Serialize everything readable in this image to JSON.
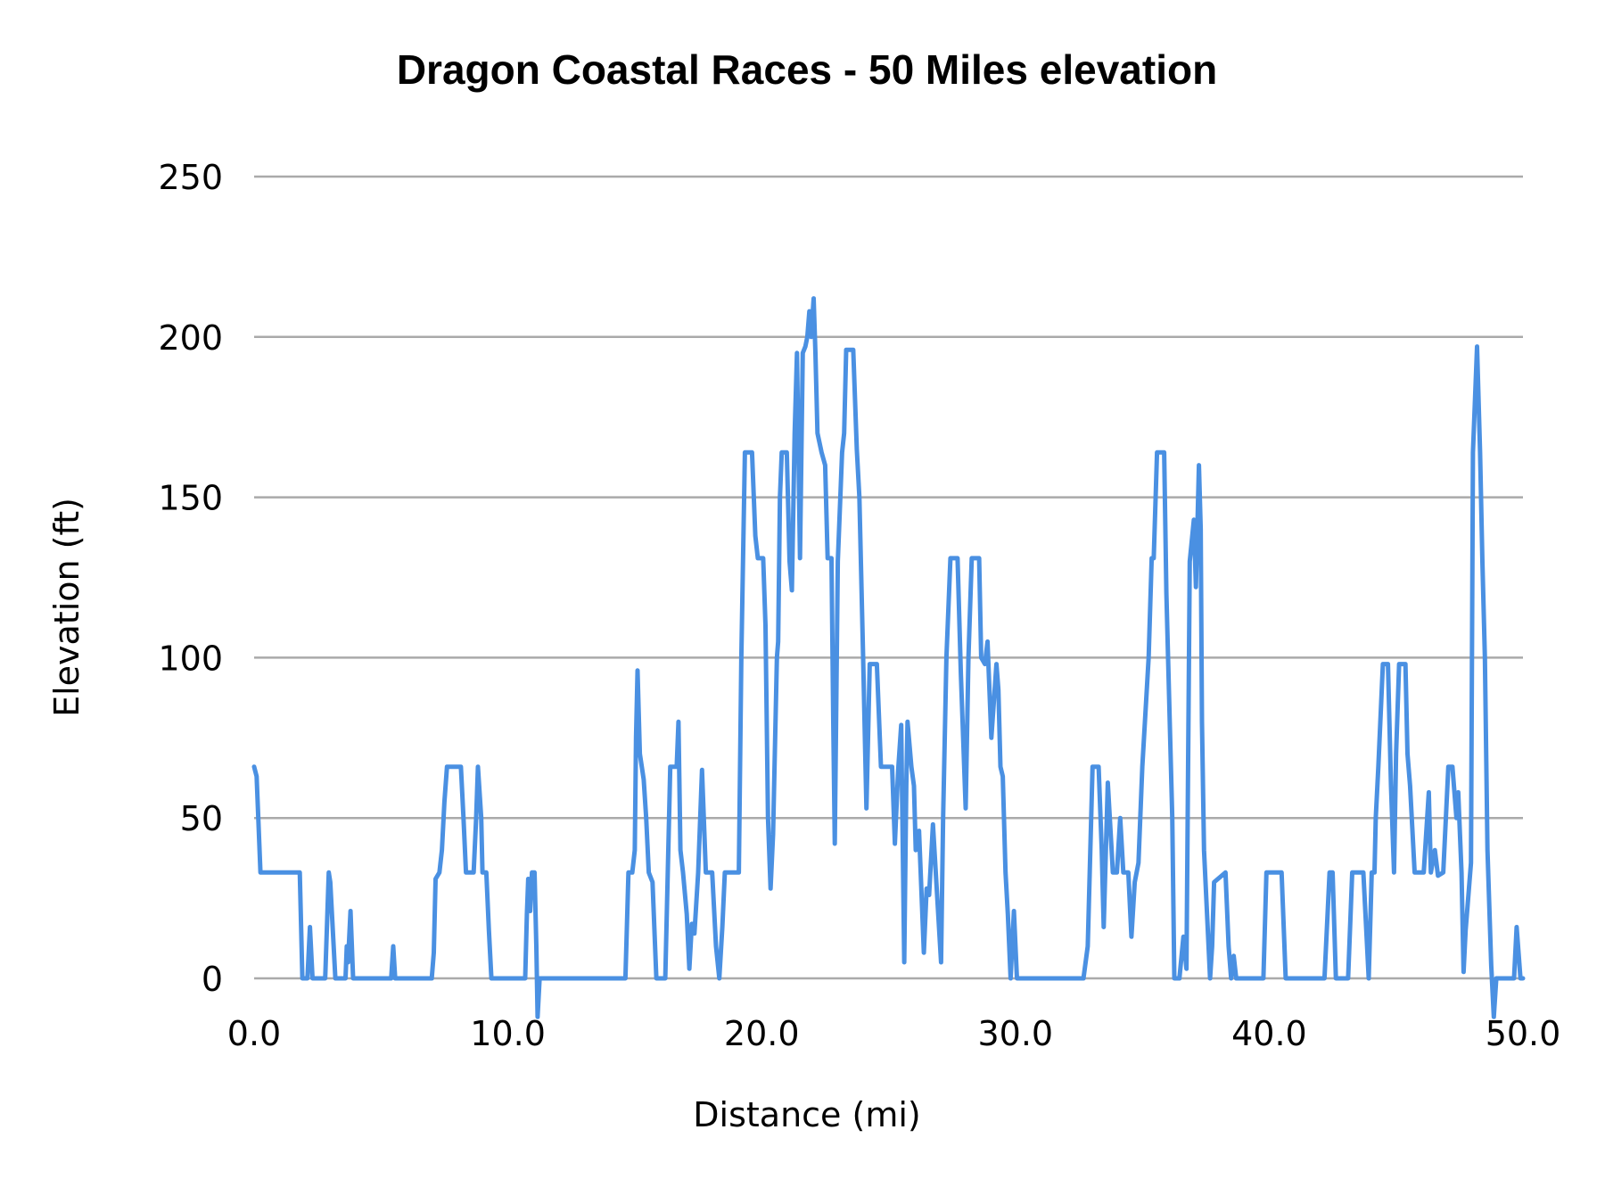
{
  "chart_data": {
    "type": "line",
    "title": "Dragon Coastal Races - 50 Miles elevation",
    "xlabel": "Distance (mi)",
    "ylabel": "Elevation (ft)",
    "xlim": [
      0,
      50
    ],
    "ylim": [
      0,
      250
    ],
    "x_tick_labels": [
      "0.0",
      "10.0",
      "20.0",
      "30.0",
      "40.0",
      "50.0"
    ],
    "x_ticks": [
      0,
      10,
      20,
      30,
      40,
      50
    ],
    "y_tick_labels": [
      "0",
      "50",
      "100",
      "150",
      "200",
      "250"
    ],
    "y_ticks": [
      0,
      50,
      100,
      150,
      200,
      250
    ],
    "grid": "horizontal",
    "legend": "none",
    "line_color": "#4a90e2",
    "grid_color": "#aaaaaa",
    "series": [
      {
        "points": [
          [
            0,
            66
          ],
          [
            0.1,
            63
          ],
          [
            0.25,
            33
          ],
          [
            1.8,
            33
          ],
          [
            1.9,
            0
          ],
          [
            2.1,
            0
          ],
          [
            2.2,
            16
          ],
          [
            2.3,
            0
          ],
          [
            2.8,
            0
          ],
          [
            2.94,
            33
          ],
          [
            3.0,
            30
          ],
          [
            3.2,
            0
          ],
          [
            3.6,
            0
          ],
          [
            3.65,
            10
          ],
          [
            3.7,
            5
          ],
          [
            3.8,
            21
          ],
          [
            3.9,
            0
          ],
          [
            5.4,
            0
          ],
          [
            5.48,
            10
          ],
          [
            5.56,
            0
          ],
          [
            7.0,
            0
          ],
          [
            7.08,
            8
          ],
          [
            7.15,
            31
          ],
          [
            7.3,
            33
          ],
          [
            7.4,
            40
          ],
          [
            7.5,
            55
          ],
          [
            7.6,
            66
          ],
          [
            8.15,
            66
          ],
          [
            8.25,
            50
          ],
          [
            8.35,
            33
          ],
          [
            8.65,
            33
          ],
          [
            8.75,
            50
          ],
          [
            8.82,
            66
          ],
          [
            8.95,
            50
          ],
          [
            9.0,
            33
          ],
          [
            9.15,
            33
          ],
          [
            9.25,
            15
          ],
          [
            9.35,
            0
          ],
          [
            10.68,
            0
          ],
          [
            10.75,
            20
          ],
          [
            10.8,
            31
          ],
          [
            10.88,
            21
          ],
          [
            10.95,
            33
          ],
          [
            11.05,
            33
          ],
          [
            11.12,
            10
          ],
          [
            11.17,
            -12
          ],
          [
            11.25,
            0
          ],
          [
            14.63,
            0
          ],
          [
            14.75,
            33
          ],
          [
            14.9,
            33
          ],
          [
            15.0,
            40
          ],
          [
            15.05,
            75
          ],
          [
            15.11,
            96
          ],
          [
            15.2,
            70
          ],
          [
            15.35,
            62
          ],
          [
            15.45,
            50
          ],
          [
            15.55,
            33
          ],
          [
            15.7,
            30
          ],
          [
            15.85,
            0
          ],
          [
            16.2,
            0
          ],
          [
            16.4,
            66
          ],
          [
            16.65,
            66
          ],
          [
            16.72,
            80
          ],
          [
            16.8,
            40
          ],
          [
            16.9,
            33
          ],
          [
            17.05,
            20
          ],
          [
            17.15,
            3
          ],
          [
            17.25,
            17
          ],
          [
            17.35,
            14
          ],
          [
            17.5,
            33
          ],
          [
            17.65,
            65
          ],
          [
            17.8,
            33
          ],
          [
            18.05,
            33
          ],
          [
            18.2,
            10
          ],
          [
            18.33,
            0
          ],
          [
            18.45,
            16
          ],
          [
            18.55,
            33
          ],
          [
            19.1,
            33
          ],
          [
            19.2,
            100
          ],
          [
            19.34,
            164
          ],
          [
            19.62,
            164
          ],
          [
            19.75,
            138
          ],
          [
            19.85,
            131
          ],
          [
            20.06,
            131
          ],
          [
            20.15,
            110
          ],
          [
            20.25,
            50
          ],
          [
            20.35,
            28
          ],
          [
            20.45,
            45
          ],
          [
            20.6,
            100
          ],
          [
            20.65,
            105
          ],
          [
            20.72,
            150
          ],
          [
            20.79,
            164
          ],
          [
            20.99,
            164
          ],
          [
            21.1,
            130
          ],
          [
            21.19,
            121
          ],
          [
            21.3,
            170
          ],
          [
            21.39,
            195
          ],
          [
            21.51,
            131
          ],
          [
            21.62,
            195
          ],
          [
            21.72,
            197
          ],
          [
            21.8,
            200
          ],
          [
            21.88,
            208
          ],
          [
            21.95,
            200
          ],
          [
            22.05,
            212
          ],
          [
            22.12,
            195
          ],
          [
            22.2,
            170
          ],
          [
            22.36,
            164
          ],
          [
            22.5,
            160
          ],
          [
            22.6,
            131
          ],
          [
            22.75,
            131
          ],
          [
            22.82,
            80
          ],
          [
            22.88,
            42
          ],
          [
            23.0,
            130
          ],
          [
            23.17,
            164
          ],
          [
            23.25,
            170
          ],
          [
            23.33,
            196
          ],
          [
            23.61,
            196
          ],
          [
            23.75,
            165
          ],
          [
            23.85,
            150
          ],
          [
            24.0,
            100
          ],
          [
            24.13,
            53
          ],
          [
            24.26,
            98
          ],
          [
            24.54,
            98
          ],
          [
            24.7,
            66
          ],
          [
            25.14,
            66
          ],
          [
            25.25,
            42
          ],
          [
            25.38,
            65
          ],
          [
            25.5,
            79
          ],
          [
            25.62,
            5
          ],
          [
            25.7,
            60
          ],
          [
            25.75,
            80
          ],
          [
            25.9,
            66
          ],
          [
            26.0,
            60
          ],
          [
            26.07,
            40
          ],
          [
            26.2,
            46
          ],
          [
            26.39,
            8
          ],
          [
            26.5,
            28
          ],
          [
            26.6,
            26
          ],
          [
            26.75,
            48
          ],
          [
            27.07,
            5
          ],
          [
            27.15,
            50
          ],
          [
            27.28,
            100
          ],
          [
            27.44,
            131
          ],
          [
            27.72,
            131
          ],
          [
            27.85,
            95
          ],
          [
            28.04,
            53
          ],
          [
            28.15,
            100
          ],
          [
            28.28,
            131
          ],
          [
            28.57,
            131
          ],
          [
            28.65,
            100
          ],
          [
            28.8,
            98
          ],
          [
            28.9,
            105
          ],
          [
            29.05,
            75
          ],
          [
            29.25,
            98
          ],
          [
            29.33,
            90
          ],
          [
            29.41,
            66
          ],
          [
            29.5,
            63
          ],
          [
            29.61,
            33
          ],
          [
            29.7,
            20
          ],
          [
            29.81,
            0
          ],
          [
            29.94,
            21
          ],
          [
            30.06,
            0
          ],
          [
            32.68,
            0
          ],
          [
            32.85,
            10
          ],
          [
            33.04,
            66
          ],
          [
            33.28,
            66
          ],
          [
            33.4,
            40
          ],
          [
            33.48,
            16
          ],
          [
            33.64,
            61
          ],
          [
            33.84,
            33
          ],
          [
            34.0,
            33
          ],
          [
            34.13,
            50
          ],
          [
            34.25,
            33
          ],
          [
            34.45,
            33
          ],
          [
            34.57,
            13
          ],
          [
            34.7,
            30
          ],
          [
            34.85,
            36
          ],
          [
            35.0,
            66
          ],
          [
            35.25,
            100
          ],
          [
            35.37,
            131
          ],
          [
            35.45,
            131
          ],
          [
            35.58,
            164
          ],
          [
            35.86,
            164
          ],
          [
            35.95,
            120
          ],
          [
            36.18,
            50
          ],
          [
            36.26,
            0
          ],
          [
            36.46,
            0
          ],
          [
            36.62,
            13
          ],
          [
            36.74,
            3
          ],
          [
            36.87,
            130
          ],
          [
            37.03,
            143
          ],
          [
            37.11,
            122
          ],
          [
            37.23,
            160
          ],
          [
            37.3,
            140
          ],
          [
            37.35,
            80
          ],
          [
            37.43,
            40
          ],
          [
            37.67,
            0
          ],
          [
            37.75,
            10
          ],
          [
            37.83,
            30
          ],
          [
            38.28,
            33
          ],
          [
            38.4,
            10
          ],
          [
            38.5,
            0
          ],
          [
            38.6,
            7
          ],
          [
            38.7,
            0
          ],
          [
            39.77,
            0
          ],
          [
            39.89,
            33
          ],
          [
            40.49,
            33
          ],
          [
            40.65,
            0
          ],
          [
            42.18,
            0
          ],
          [
            42.38,
            33
          ],
          [
            42.5,
            33
          ],
          [
            42.63,
            0
          ],
          [
            43.11,
            0
          ],
          [
            43.27,
            33
          ],
          [
            43.71,
            33
          ],
          [
            43.92,
            0
          ],
          [
            44.04,
            33
          ],
          [
            44.15,
            33
          ],
          [
            44.2,
            50
          ],
          [
            44.3,
            66
          ],
          [
            44.48,
            98
          ],
          [
            44.68,
            98
          ],
          [
            44.8,
            60
          ],
          [
            44.92,
            33
          ],
          [
            45.0,
            70
          ],
          [
            45.12,
            98
          ],
          [
            45.37,
            98
          ],
          [
            45.45,
            70
          ],
          [
            45.55,
            60
          ],
          [
            45.73,
            33
          ],
          [
            46.09,
            33
          ],
          [
            46.29,
            58
          ],
          [
            46.37,
            33
          ],
          [
            46.53,
            40
          ],
          [
            46.65,
            32
          ],
          [
            46.86,
            33
          ],
          [
            47.06,
            66
          ],
          [
            47.22,
            66
          ],
          [
            47.38,
            50
          ],
          [
            47.45,
            58
          ],
          [
            47.58,
            33
          ],
          [
            47.66,
            2
          ],
          [
            47.74,
            15
          ],
          [
            47.95,
            36
          ],
          [
            48.03,
            164
          ],
          [
            48.19,
            197
          ],
          [
            48.31,
            164
          ],
          [
            48.4,
            130
          ],
          [
            48.5,
            100
          ],
          [
            48.6,
            40
          ],
          [
            48.75,
            4
          ],
          [
            48.85,
            -12
          ],
          [
            48.95,
            0
          ],
          [
            49.65,
            0
          ],
          [
            49.75,
            16
          ],
          [
            49.9,
            0
          ],
          [
            50,
            0
          ]
        ]
      }
    ]
  }
}
